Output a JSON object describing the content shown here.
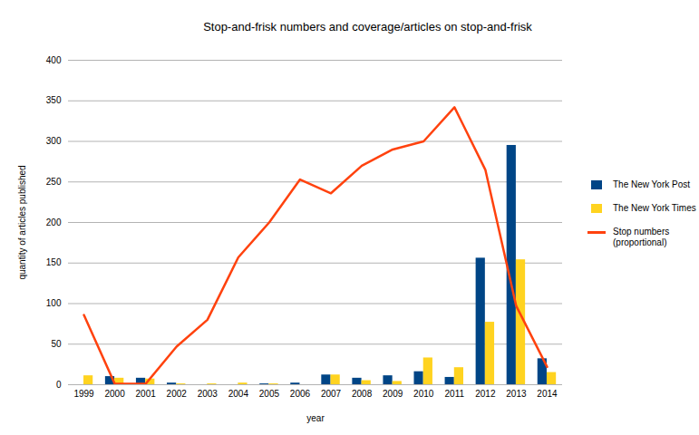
{
  "chart_data": {
    "type": "bar",
    "title": "Stop-and-frisk numbers and coverage/articles on stop-and-frisk",
    "x_label": "year",
    "y_label": "quantity of articles published",
    "categories": [
      "1999",
      "2000",
      "2001",
      "2002",
      "2003",
      "2004",
      "2005",
      "2006",
      "2007",
      "2008",
      "2009",
      "2010",
      "2011",
      "2012",
      "2013",
      "2014"
    ],
    "series": [
      {
        "name": "The New York Post",
        "type": "bar",
        "color": "#004586",
        "values": [
          0,
          10,
          8,
          2,
          0,
          0,
          1,
          2,
          12,
          8,
          11,
          16,
          9,
          156,
          295,
          32
        ]
      },
      {
        "name": "The New York Times",
        "type": "bar",
        "color": "#ffd320",
        "values": [
          11,
          8,
          7,
          1,
          1,
          2,
          1,
          0,
          12,
          5,
          4,
          33,
          21,
          77,
          154,
          15
        ]
      },
      {
        "name": "Stop numbers (proportional)",
        "type": "line",
        "color": "#ff420e",
        "values": [
          86,
          1,
          1,
          47,
          80,
          157,
          200,
          253,
          236,
          270,
          290,
          300,
          342,
          265,
          97,
          22
        ]
      }
    ],
    "ylim": [
      0,
      400
    ],
    "yticks": [
      0,
      50,
      100,
      150,
      200,
      250,
      300,
      350,
      400
    ],
    "grid": true,
    "legend": "right"
  }
}
